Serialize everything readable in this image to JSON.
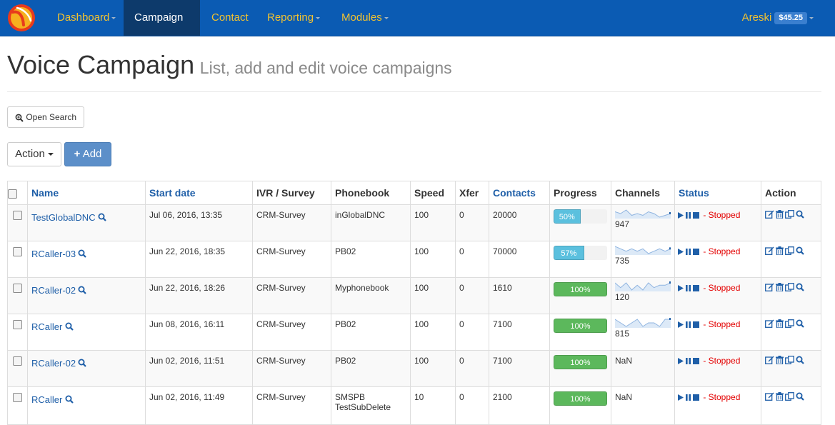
{
  "navbar": {
    "items": [
      {
        "label": "Dashboard",
        "active": false,
        "dropdown": true
      },
      {
        "label": "Campaign",
        "active": true,
        "dropdown": false
      },
      {
        "label": "Contact",
        "active": false,
        "dropdown": false
      },
      {
        "label": "Reporting",
        "active": false,
        "dropdown": true
      },
      {
        "label": "Modules",
        "active": false,
        "dropdown": true
      }
    ],
    "user": "Areski",
    "balance": "$45.25",
    "colors": {
      "bar": "#0b5bb3",
      "active": "#0d3a6b",
      "link": "#f2c230"
    }
  },
  "page": {
    "title": "Voice Campaign",
    "subtitle": "List, add and edit voice campaigns"
  },
  "toolbar": {
    "open_search": "Open Search",
    "action": "Action",
    "add": "Add"
  },
  "table": {
    "headers": {
      "name": "Name",
      "start_date": "Start date",
      "ivr": "IVR / Survey",
      "phonebook": "Phonebook",
      "speed": "Speed",
      "xfer": "Xfer",
      "contacts": "Contacts",
      "progress": "Progress",
      "channels": "Channels",
      "status": "Status",
      "action": "Action"
    },
    "rows": [
      {
        "name": "TestGlobalDNC",
        "start": "Jul 06, 2016, 13:35",
        "ivr": "CRM-Survey",
        "phonebook": "inGlobalDNC",
        "speed": "100",
        "xfer": "0",
        "contacts": "20000",
        "progress_label": "50%",
        "progress": 0.5,
        "progress_color": "#5bc0de",
        "channels": "947",
        "spark": [
          5,
          4,
          6,
          3,
          4,
          3,
          5,
          4,
          2,
          3,
          4
        ],
        "status": "Stopped"
      },
      {
        "name": "RCaller-03",
        "start": "Jun 22, 2016, 18:35",
        "ivr": "CRM-Survey",
        "phonebook": "PB02",
        "speed": "100",
        "xfer": "0",
        "contacts": "70000",
        "progress_label": "57%",
        "progress": 0.57,
        "progress_color": "#5bc0de",
        "channels": "735",
        "spark": [
          5,
          4,
          3,
          4,
          3,
          4,
          2,
          3,
          4,
          3,
          4
        ],
        "status": "Stopped"
      },
      {
        "name": "RCaller-02",
        "start": "Jun 22, 2016, 18:26",
        "ivr": "CRM-Survey",
        "phonebook": "Myphonebook",
        "speed": "100",
        "xfer": "0",
        "contacts": "1610",
        "progress_label": "100%",
        "progress": 1.0,
        "progress_color": "#5cb85c",
        "channels": "120",
        "spark": [
          5,
          3,
          5,
          2,
          4,
          2,
          5,
          3,
          4,
          4,
          5
        ],
        "status": "Stopped"
      },
      {
        "name": "RCaller",
        "start": "Jun 08, 2016, 16:11",
        "ivr": "CRM-Survey",
        "phonebook": "PB02",
        "speed": "100",
        "xfer": "0",
        "contacts": "7100",
        "progress_label": "100%",
        "progress": 1.0,
        "progress_color": "#5cb85c",
        "channels": "815",
        "spark": [
          5,
          4,
          3,
          4,
          5,
          3,
          4,
          4,
          3,
          5,
          5
        ],
        "status": "Stopped"
      },
      {
        "name": "RCaller-02",
        "start": "Jun 02, 2016, 11:51",
        "ivr": "CRM-Survey",
        "phonebook": "PB02",
        "speed": "100",
        "xfer": "0",
        "contacts": "7100",
        "progress_label": "100%",
        "progress": 1.0,
        "progress_color": "#5cb85c",
        "channels": "NaN",
        "spark": null,
        "status": "Stopped"
      },
      {
        "name": "RCaller",
        "start": "Jun 02, 2016, 11:49",
        "ivr": "CRM-Survey",
        "phonebook": "SMSPB",
        "phonebook2": "TestSubDelete",
        "speed": "10",
        "xfer": "0",
        "contacts": "2100",
        "progress_label": "100%",
        "progress": 1.0,
        "progress_color": "#5cb85c",
        "channels": "NaN",
        "spark": null,
        "status": "Stopped"
      }
    ]
  },
  "icons": {
    "logo": "newfies-logo",
    "search": "magnifier-icon",
    "play": "play-icon",
    "pause": "pause-icon",
    "stop": "stop-icon",
    "edit": "edit-icon",
    "delete": "trash-icon",
    "copy": "copy-icon"
  }
}
